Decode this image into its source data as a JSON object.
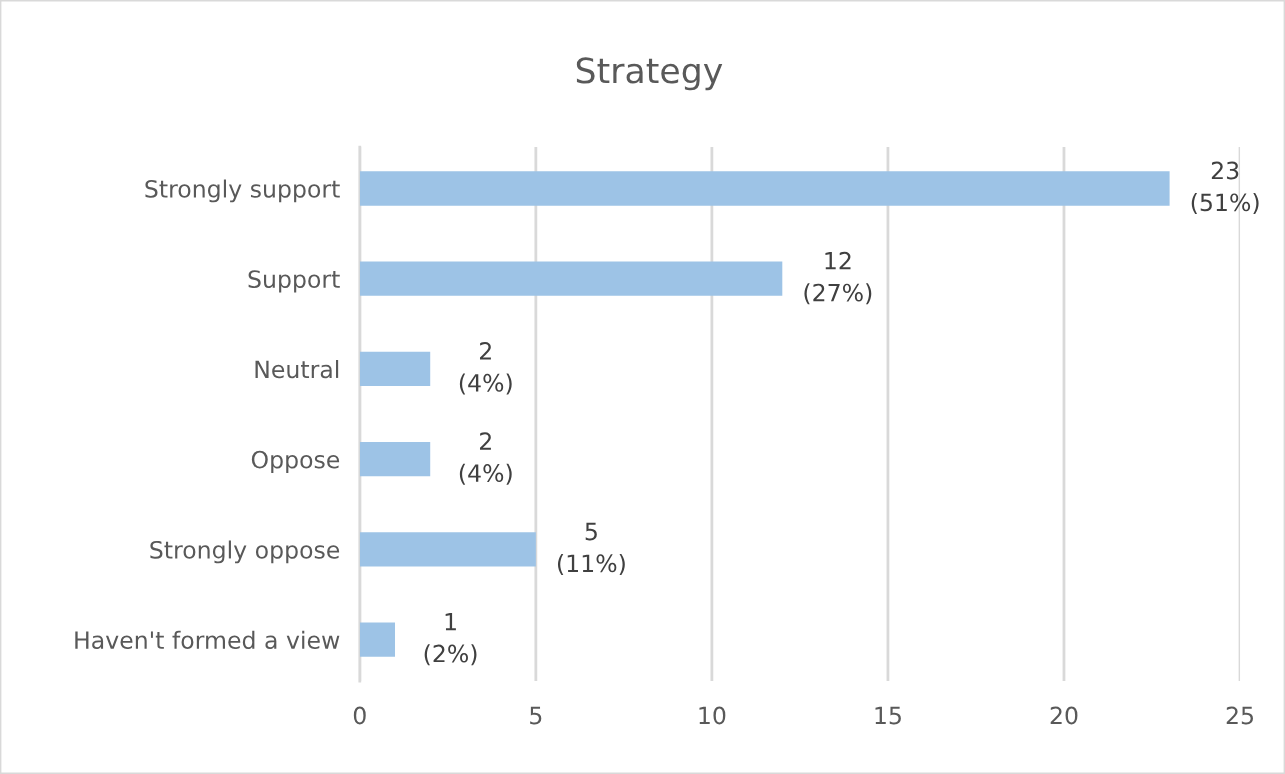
{
  "chart_data": {
    "type": "bar",
    "orientation": "horizontal",
    "title": "Strategy",
    "categories": [
      "Strongly support",
      "Support",
      "Neutral",
      "Oppose",
      "Strongly oppose",
      "Haven't formed a view"
    ],
    "values": [
      23,
      12,
      2,
      2,
      5,
      1
    ],
    "value_labels": [
      "23\n(51%)",
      "12\n(27%)",
      "2\n(4%)",
      "2\n(4%)",
      "5\n(11%)",
      "1\n(2%)"
    ],
    "color": "#9dc3e6",
    "xlim": [
      0,
      25
    ],
    "xticks": [
      0,
      5,
      10,
      15,
      20,
      25
    ],
    "grid": "x"
  }
}
